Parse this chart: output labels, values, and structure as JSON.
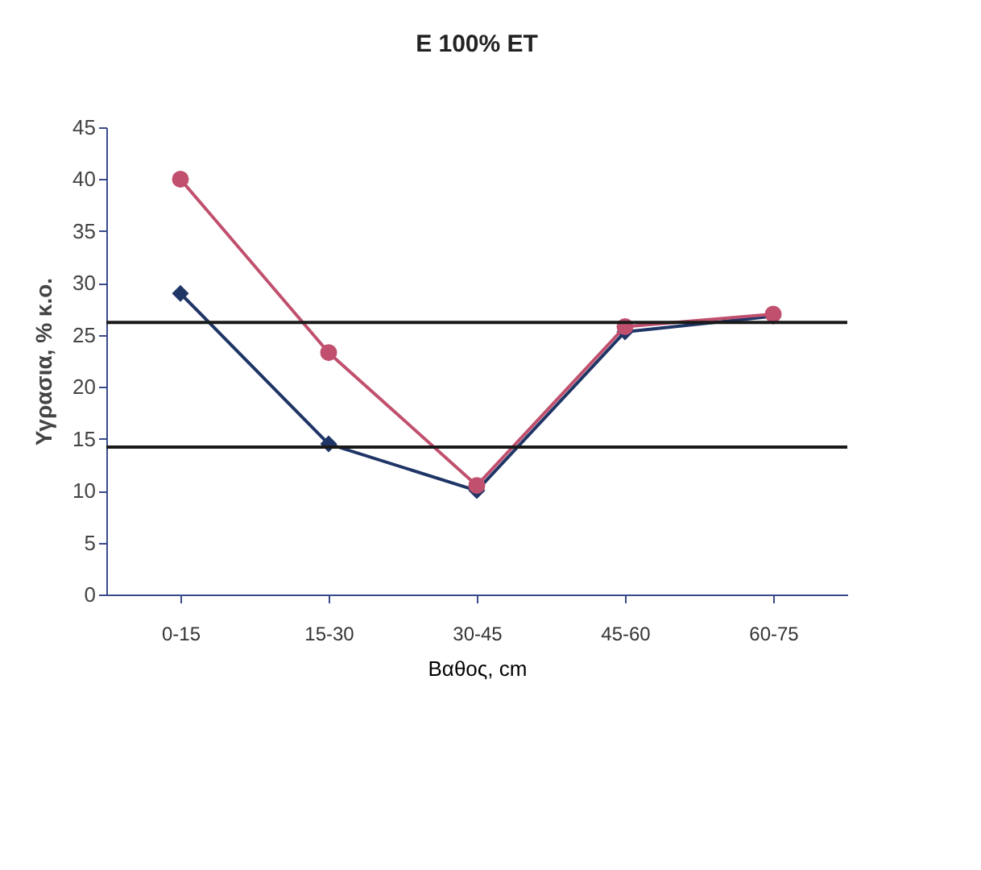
{
  "chart_data": {
    "type": "line",
    "title": "E 100% ET",
    "xlabel": "Βαθος, cm",
    "ylabel": "Υγρασια, % κ.ο.",
    "categories": [
      "0-15",
      "15-30",
      "30-45",
      "45-60",
      "60-75"
    ],
    "series": [
      {
        "color": "#1f3566",
        "marker": "diamond",
        "values": [
          29,
          14.5,
          10,
          25.3,
          26.8
        ]
      },
      {
        "color": "#c0506e",
        "marker": "circle",
        "values": [
          40,
          23.3,
          10.5,
          25.8,
          27
        ]
      }
    ],
    "ylim": [
      0,
      45
    ],
    "yticks": [
      0,
      5,
      10,
      15,
      20,
      25,
      30,
      35,
      40,
      45
    ],
    "grid": false,
    "ref_lines": [
      {
        "axis": "y",
        "value": 26.2,
        "color": "#1a1a1a"
      },
      {
        "axis": "y",
        "value": 14.2,
        "color": "#1a1a1a"
      }
    ]
  }
}
